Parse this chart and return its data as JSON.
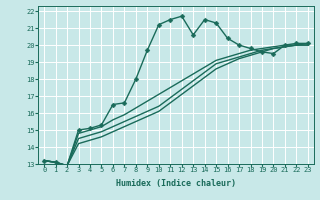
{
  "xlabel": "Humidex (Indice chaleur)",
  "xlim": [
    0,
    23
  ],
  "ylim": [
    13,
    22
  ],
  "yticks": [
    13,
    14,
    15,
    16,
    17,
    18,
    19,
    20,
    21,
    22
  ],
  "xticks": [
    0,
    1,
    2,
    3,
    4,
    5,
    6,
    7,
    8,
    9,
    10,
    11,
    12,
    13,
    14,
    15,
    16,
    17,
    18,
    19,
    20,
    21,
    22,
    23
  ],
  "background_color": "#c8e8e8",
  "grid_color": "#ffffff",
  "line_color": "#1a6b5a",
  "series": {
    "line1": [
      13.2,
      13.1,
      12.9,
      15.0,
      15.1,
      15.3,
      16.5,
      16.6,
      18.0,
      19.7,
      21.2,
      21.5,
      21.7,
      20.6,
      21.5,
      21.3,
      20.4,
      20.0,
      19.8,
      19.6,
      19.5,
      20.0,
      20.1,
      20.1
    ],
    "line2": [
      13.2,
      13.1,
      12.9,
      14.8,
      15.0,
      15.2,
      15.6,
      15.9,
      16.3,
      16.7,
      17.1,
      17.5,
      17.9,
      18.3,
      18.7,
      19.1,
      19.3,
      19.5,
      19.7,
      19.8,
      19.9,
      20.0,
      20.0,
      20.1
    ],
    "line3": [
      13.2,
      13.1,
      12.9,
      14.5,
      14.7,
      14.9,
      15.2,
      15.5,
      15.8,
      16.1,
      16.4,
      16.9,
      17.4,
      17.9,
      18.4,
      18.9,
      19.1,
      19.3,
      19.5,
      19.7,
      19.8,
      19.9,
      20.0,
      20.0
    ],
    "line4": [
      13.2,
      13.1,
      12.9,
      14.2,
      14.4,
      14.6,
      14.9,
      15.2,
      15.5,
      15.8,
      16.1,
      16.6,
      17.1,
      17.6,
      18.1,
      18.6,
      18.9,
      19.2,
      19.4,
      19.6,
      19.8,
      19.9,
      20.0,
      20.0
    ]
  },
  "marker": "D",
  "marker_size": 2.5,
  "linewidth": 1.0,
  "tick_fontsize": 5.0,
  "xlabel_fontsize": 6.0
}
